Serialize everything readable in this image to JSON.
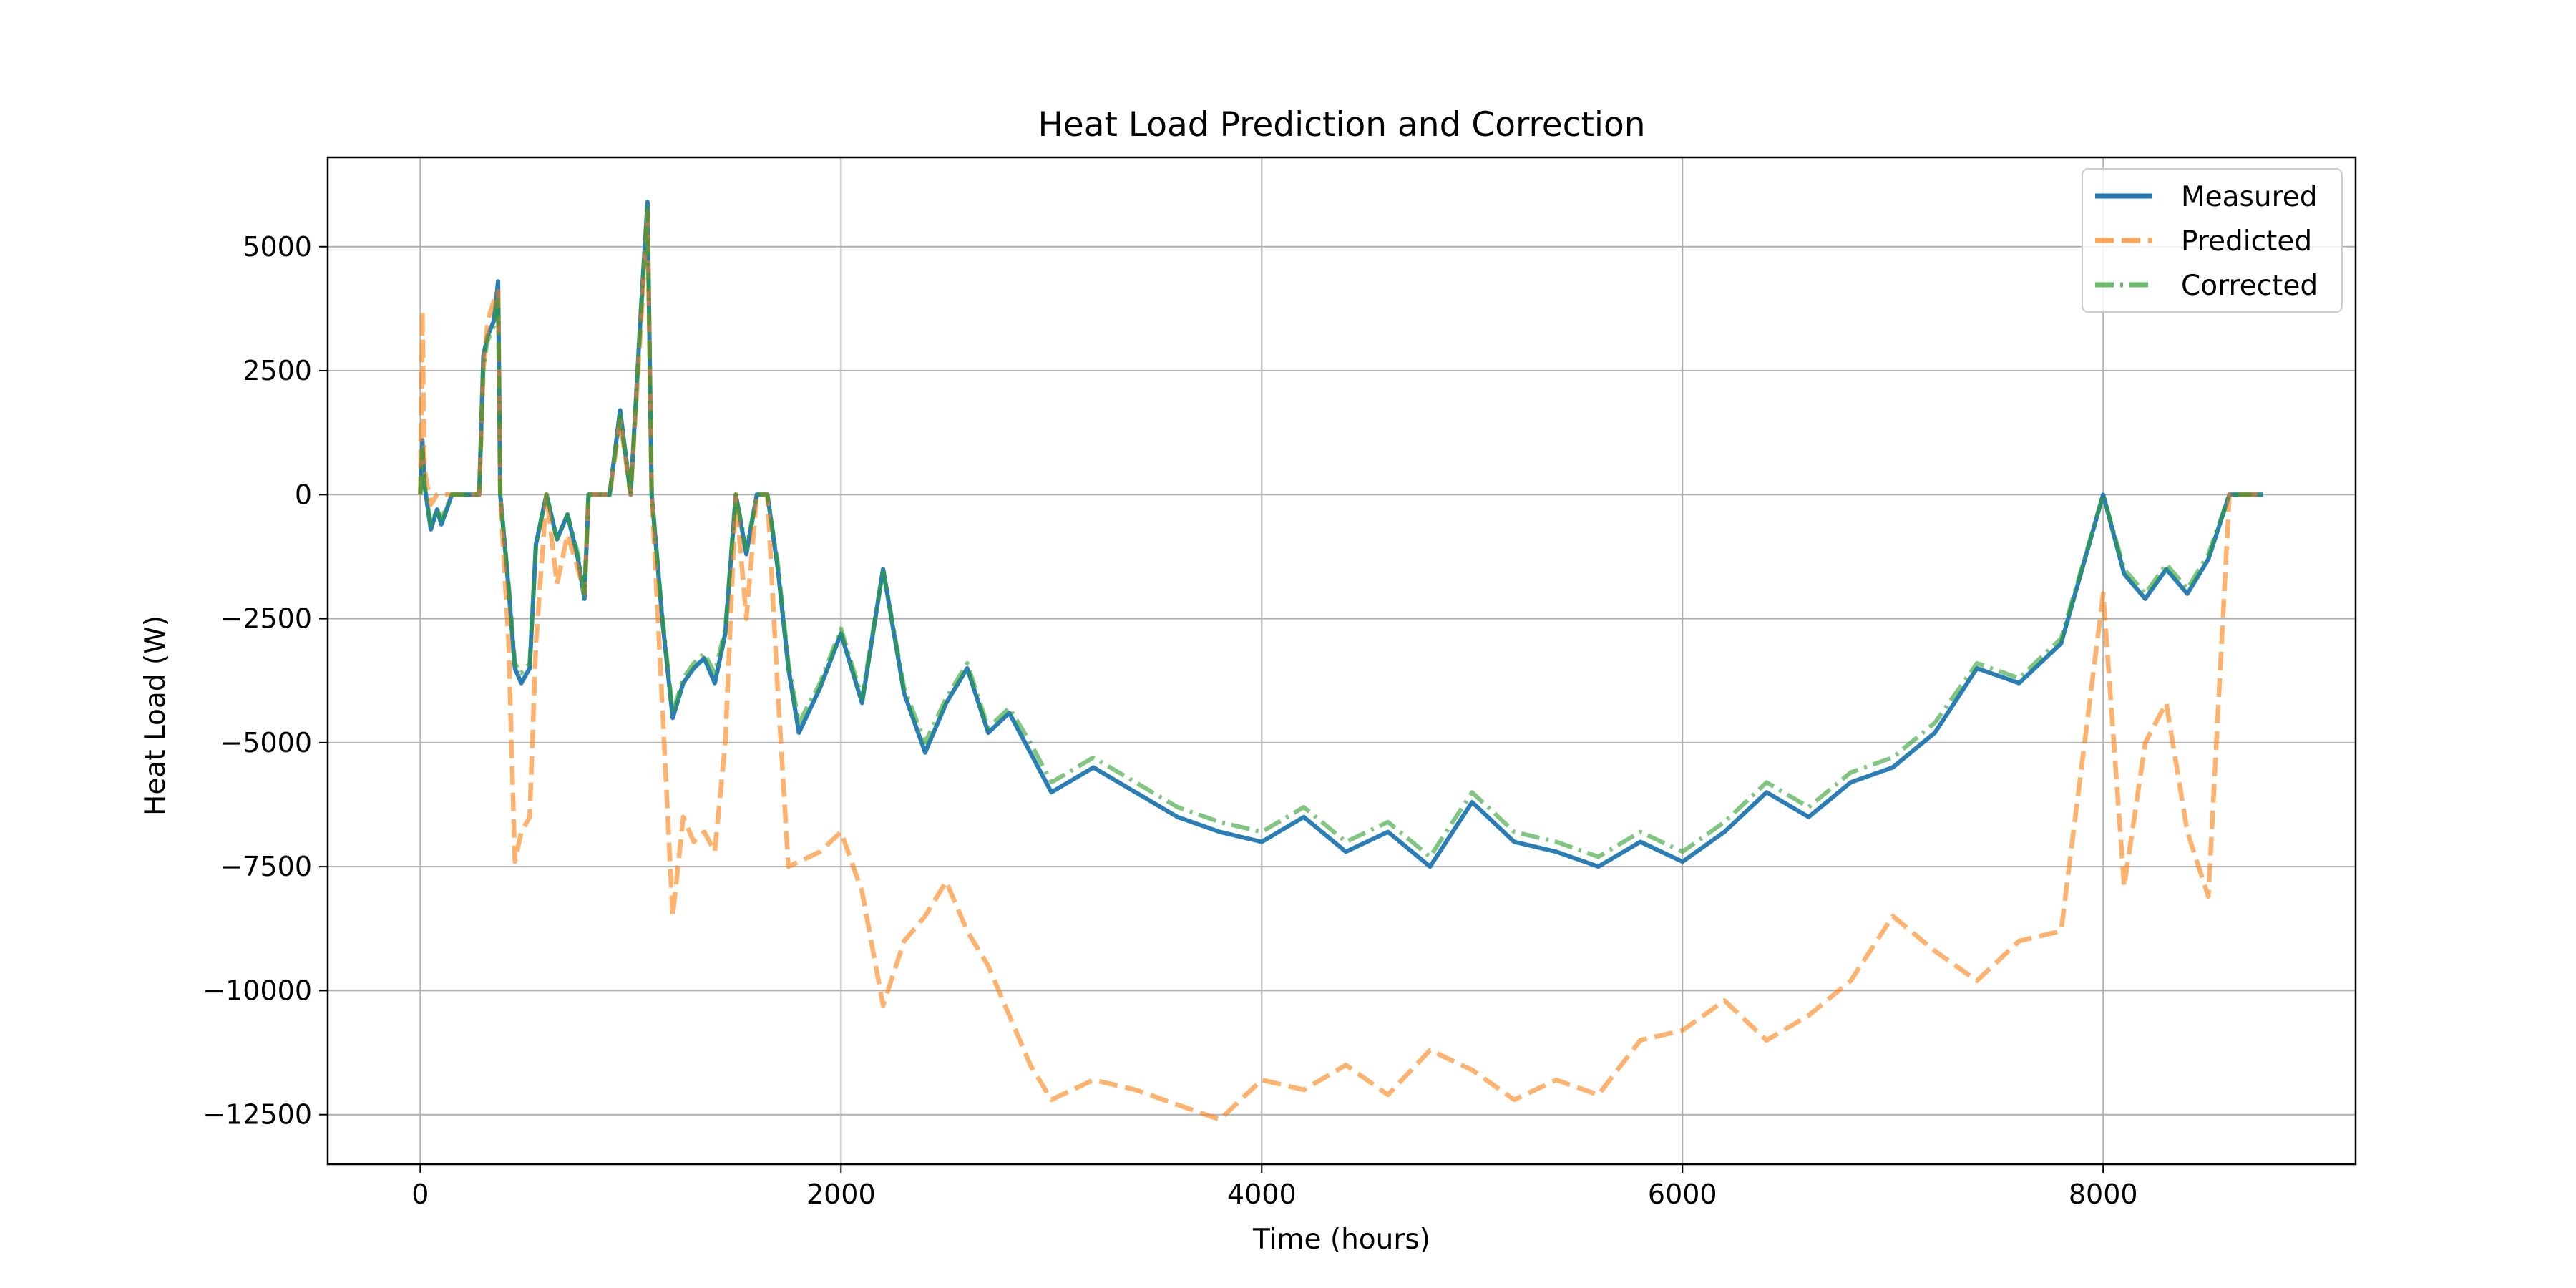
{
  "chart_data": {
    "type": "line",
    "title": "Heat Load Prediction and Correction",
    "xlabel": "Time (hours)",
    "ylabel": "Heat Load (W)",
    "xlim": [
      -440,
      9200
    ],
    "ylim": [
      -13500,
      6800
    ],
    "x_ticks": [
      0,
      2000,
      4000,
      6000,
      8000
    ],
    "x_tick_labels": [
      "0",
      "2000",
      "4000",
      "6000",
      "8000"
    ],
    "y_ticks": [
      5000,
      2500,
      0,
      -2500,
      -5000,
      -7500,
      -10000,
      -12500
    ],
    "y_tick_labels": [
      "5000",
      "2500",
      "0",
      "−2500",
      "−5000",
      "−7500",
      "−10000",
      "−12500"
    ],
    "grid": true,
    "legend_position": "top-right",
    "series": [
      {
        "name": "Measured",
        "color": "#1f77b4",
        "style": "solid",
        "x": [
          0,
          10,
          20,
          50,
          80,
          100,
          150,
          200,
          280,
          300,
          320,
          350,
          370,
          380,
          420,
          450,
          480,
          520,
          550,
          600,
          650,
          700,
          750,
          780,
          800,
          900,
          950,
          1000,
          1050,
          1080,
          1100,
          1150,
          1200,
          1250,
          1300,
          1350,
          1400,
          1450,
          1500,
          1550,
          1600,
          1650,
          1700,
          1750,
          1800,
          1900,
          2000,
          2100,
          2200,
          2300,
          2400,
          2500,
          2600,
          2700,
          2800,
          2900,
          3000,
          3200,
          3400,
          3600,
          3800,
          4000,
          4200,
          4400,
          4600,
          4800,
          5000,
          5200,
          5400,
          5600,
          5800,
          6000,
          6200,
          6400,
          6600,
          6800,
          7000,
          7200,
          7400,
          7600,
          7800,
          8000,
          8100,
          8200,
          8300,
          8400,
          8500,
          8600,
          8700,
          8760
        ],
        "values": [
          0,
          1100,
          200,
          -700,
          -300,
          -600,
          0,
          0,
          0,
          2800,
          3200,
          3500,
          4300,
          0,
          -1900,
          -3500,
          -3800,
          -3500,
          -1000,
          0,
          -900,
          -400,
          -1300,
          -2100,
          0,
          0,
          1700,
          0,
          3800,
          5900,
          0,
          -2500,
          -4500,
          -3800,
          -3500,
          -3300,
          -3800,
          -2800,
          0,
          -1200,
          0,
          0,
          -1500,
          -3500,
          -4800,
          -3900,
          -2800,
          -4200,
          -1500,
          -4000,
          -5200,
          -4200,
          -3500,
          -4800,
          -4400,
          -5200,
          -6000,
          -5500,
          -6000,
          -6500,
          -6800,
          -7000,
          -6500,
          -7200,
          -6800,
          -7500,
          -6200,
          -7000,
          -7200,
          -7500,
          -7000,
          -7400,
          -6800,
          -6000,
          -6500,
          -5800,
          -5500,
          -4800,
          -3500,
          -3800,
          -3000,
          0,
          -1600,
          -2100,
          -1500,
          -2000,
          -1300,
          0,
          0,
          0
        ]
      },
      {
        "name": "Predicted",
        "color": "#ff7f0e",
        "style": "dashed",
        "x": [
          0,
          10,
          20,
          50,
          80,
          100,
          150,
          200,
          280,
          300,
          320,
          350,
          370,
          380,
          420,
          450,
          480,
          520,
          550,
          600,
          650,
          700,
          750,
          780,
          800,
          900,
          950,
          1000,
          1050,
          1080,
          1100,
          1150,
          1200,
          1250,
          1300,
          1350,
          1400,
          1450,
          1500,
          1550,
          1600,
          1650,
          1700,
          1750,
          1800,
          1900,
          2000,
          2100,
          2200,
          2300,
          2400,
          2500,
          2600,
          2700,
          2800,
          2900,
          3000,
          3200,
          3400,
          3600,
          3800,
          4000,
          4200,
          4400,
          4600,
          4800,
          5000,
          5200,
          5400,
          5600,
          5800,
          6000,
          6200,
          6400,
          6600,
          6800,
          7000,
          7200,
          7400,
          7600,
          7800,
          8000,
          8100,
          8200,
          8300,
          8400,
          8500,
          8600,
          8700,
          8760
        ],
        "values": [
          0,
          3700,
          500,
          -200,
          0,
          0,
          0,
          0,
          0,
          2500,
          3500,
          3900,
          4100,
          0,
          -3000,
          -7400,
          -6800,
          -6500,
          -3000,
          0,
          -1800,
          -800,
          -1500,
          -2000,
          0,
          0,
          1500,
          0,
          3500,
          5700,
          0,
          -4200,
          -8500,
          -6500,
          -7000,
          -6800,
          -7200,
          -5000,
          0,
          -2500,
          0,
          0,
          -4000,
          -7500,
          -7400,
          -7200,
          -6800,
          -8000,
          -10300,
          -9000,
          -8500,
          -7800,
          -8800,
          -9500,
          -10500,
          -11500,
          -12200,
          -11800,
          -12000,
          -12300,
          -12600,
          -11800,
          -12000,
          -11500,
          -12100,
          -11200,
          -11600,
          -12200,
          -11800,
          -12100,
          -11000,
          -10800,
          -10200,
          -11000,
          -10500,
          -9800,
          -8500,
          -9200,
          -9800,
          -9000,
          -8800,
          -2000,
          -7900,
          -5000,
          -4200,
          -6800,
          -8100,
          0,
          0,
          0
        ]
      },
      {
        "name": "Corrected",
        "color": "#2ca02c",
        "style": "dashdot",
        "x": [
          0,
          10,
          20,
          50,
          80,
          100,
          150,
          200,
          280,
          300,
          320,
          350,
          370,
          380,
          420,
          450,
          480,
          520,
          550,
          600,
          650,
          700,
          750,
          780,
          800,
          900,
          950,
          1000,
          1050,
          1080,
          1100,
          1150,
          1200,
          1250,
          1300,
          1350,
          1400,
          1450,
          1500,
          1550,
          1600,
          1650,
          1700,
          1750,
          1800,
          1900,
          2000,
          2100,
          2200,
          2300,
          2400,
          2500,
          2600,
          2700,
          2800,
          2900,
          3000,
          3200,
          3400,
          3600,
          3800,
          4000,
          4200,
          4400,
          4600,
          4800,
          5000,
          5200,
          5400,
          5600,
          5800,
          6000,
          6200,
          6400,
          6600,
          6800,
          7000,
          7200,
          7400,
          7600,
          7800,
          8000,
          8100,
          8200,
          8300,
          8400,
          8500,
          8600,
          8700,
          8760
        ],
        "values": [
          0,
          900,
          200,
          -600,
          -300,
          -500,
          0,
          0,
          0,
          2600,
          3100,
          3400,
          4000,
          0,
          -1800,
          -3400,
          -3600,
          -3400,
          -1000,
          0,
          -900,
          -400,
          -1200,
          -2000,
          0,
          0,
          1600,
          0,
          3700,
          5800,
          0,
          -2400,
          -4400,
          -3700,
          -3400,
          -3200,
          -3600,
          -2700,
          0,
          -1100,
          0,
          0,
          -1400,
          -3400,
          -4600,
          -3800,
          -2700,
          -4100,
          -1500,
          -3900,
          -5000,
          -4100,
          -3400,
          -4700,
          -4300,
          -5000,
          -5800,
          -5300,
          -5800,
          -6300,
          -6600,
          -6800,
          -6300,
          -7000,
          -6600,
          -7300,
          -6000,
          -6800,
          -7000,
          -7300,
          -6800,
          -7200,
          -6600,
          -5800,
          -6300,
          -5600,
          -5300,
          -4600,
          -3400,
          -3700,
          -2900,
          0,
          -1500,
          -2000,
          -1400,
          -1900,
          -1200,
          0,
          0,
          0
        ]
      }
    ]
  }
}
